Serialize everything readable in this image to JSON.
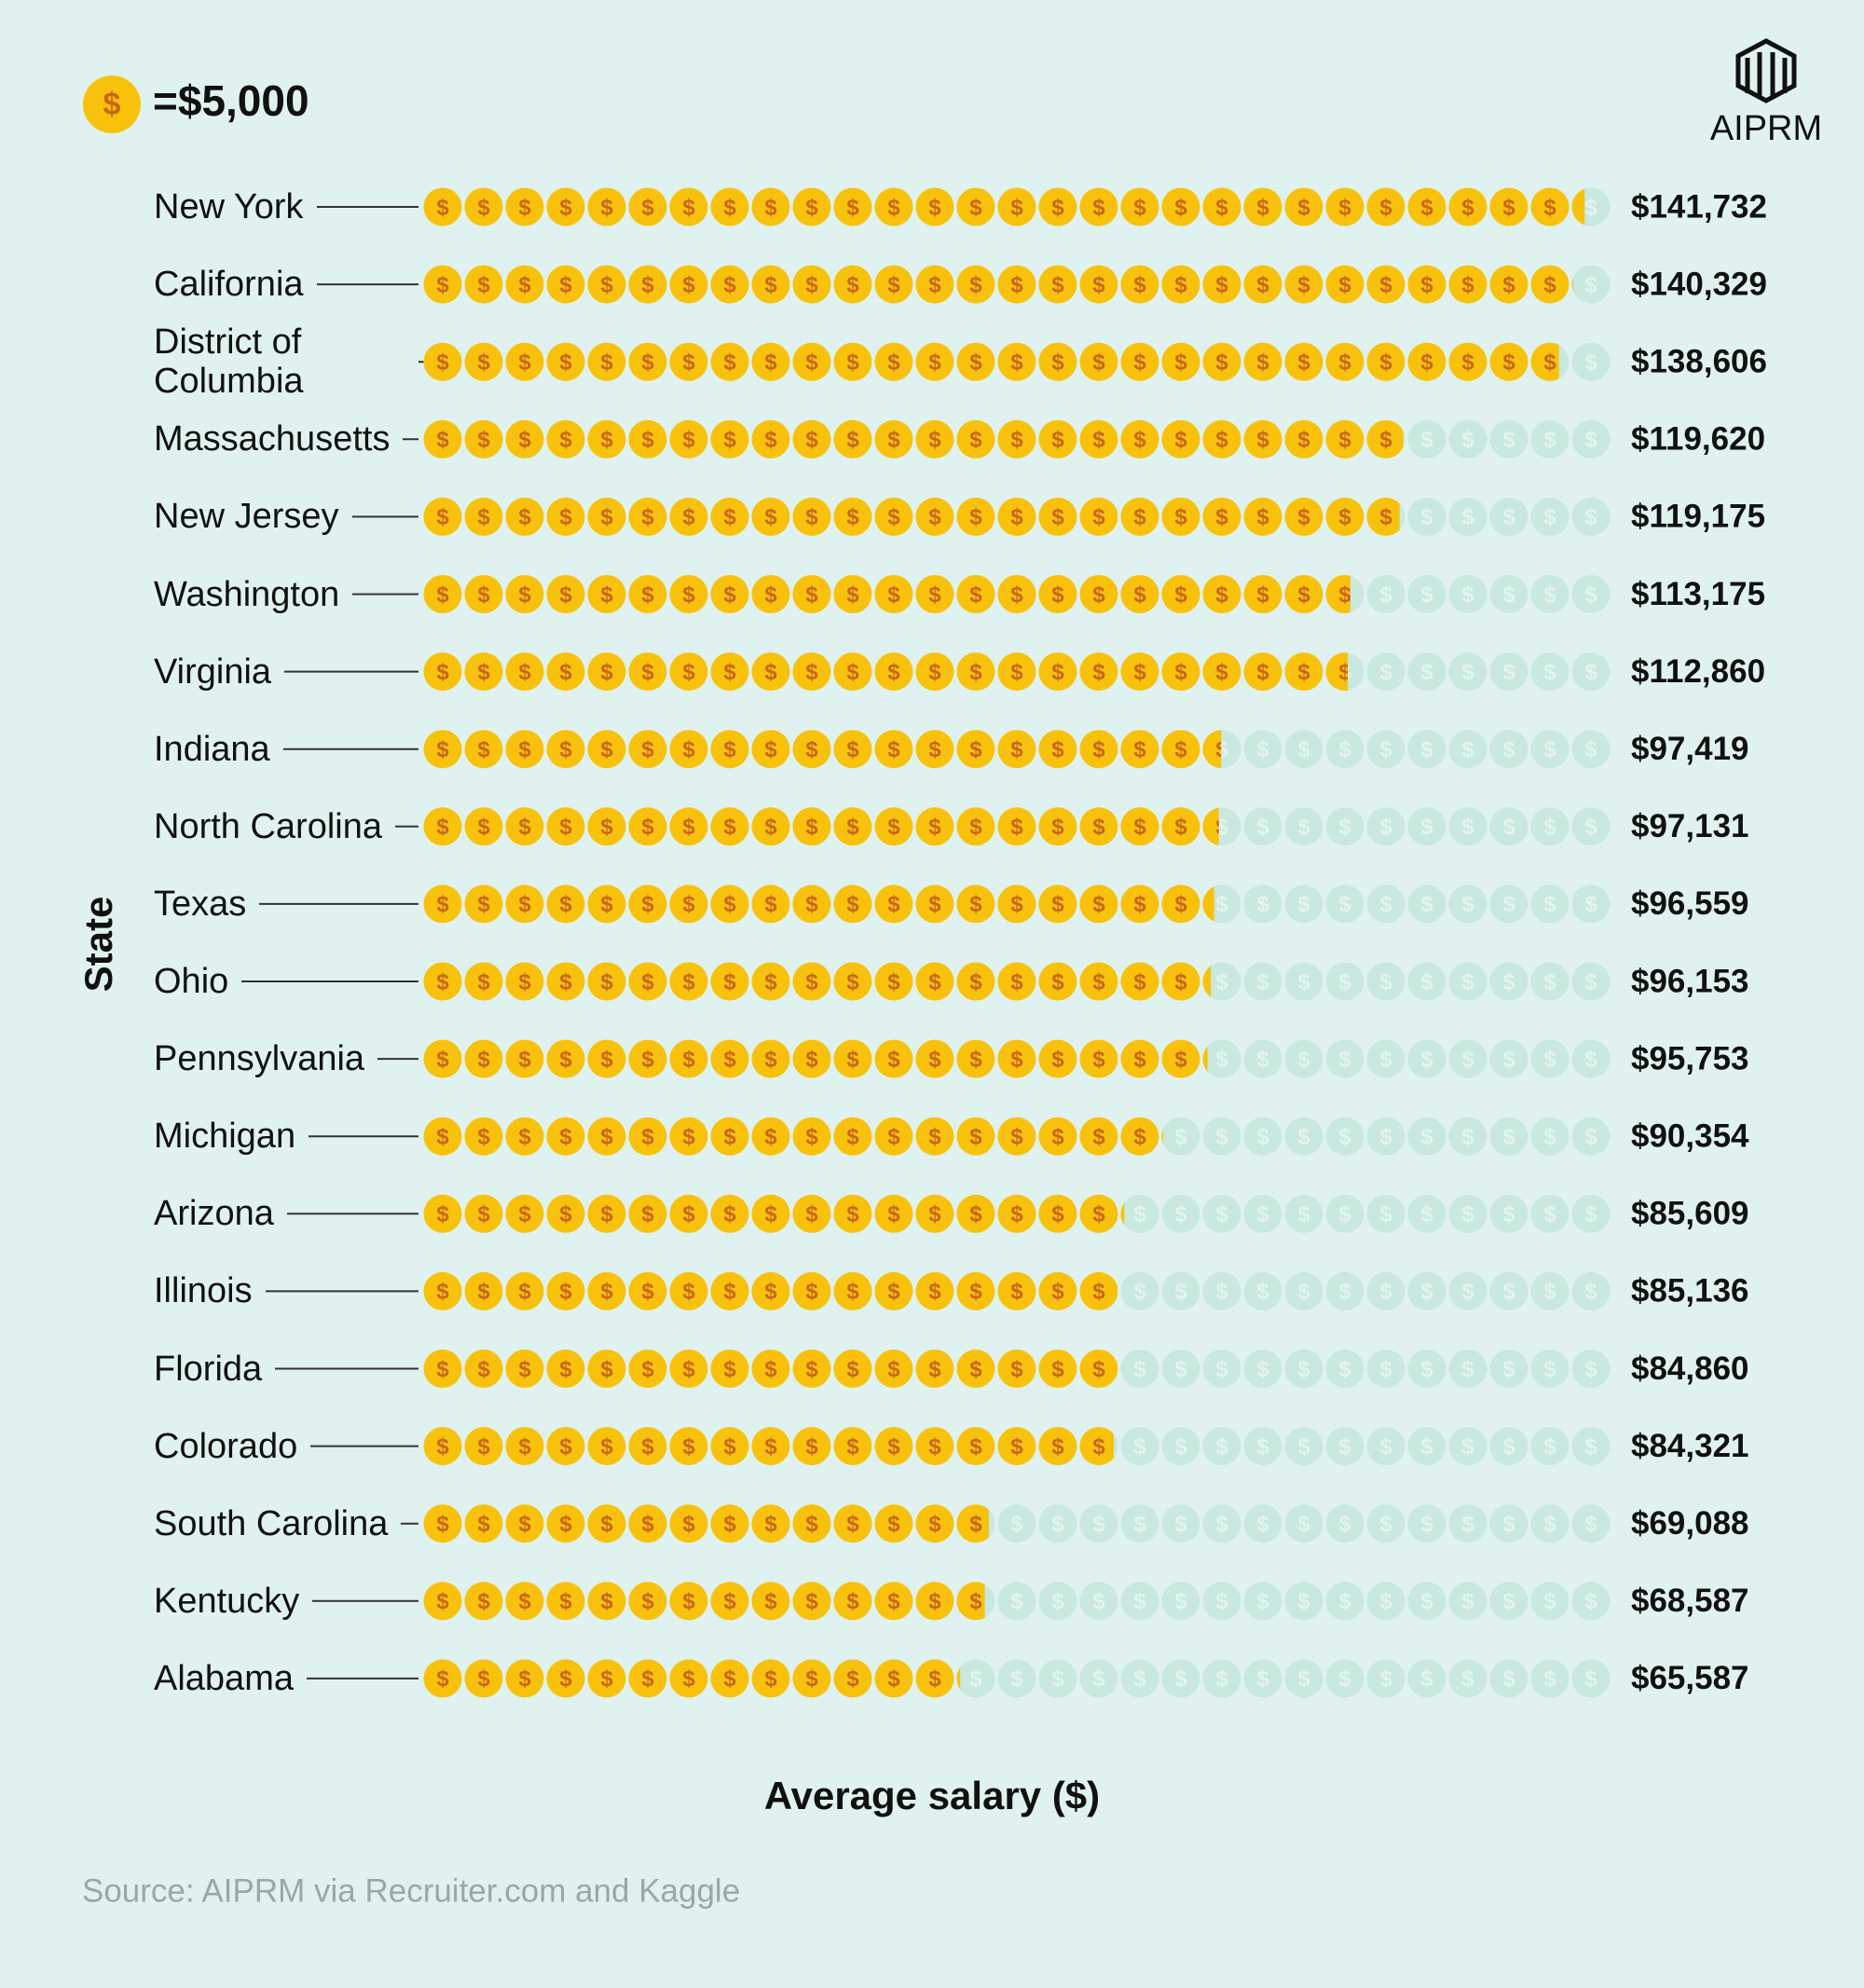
{
  "chart_data": {
    "type": "pictogram",
    "legend": {
      "value": 5000,
      "label": "=$5,000"
    },
    "symbol": "$",
    "logo": "AIPRM",
    "categories": [
      "New York",
      "California",
      "District of Columbia",
      "Massachusetts",
      "New Jersey",
      "Washington",
      "Virginia",
      "Indiana",
      "North Carolina",
      "Texas",
      "Ohio",
      "Pennsylvania",
      "Michigan",
      "Arizona",
      "Illinois",
      "Florida",
      "Colorado",
      "South Carolina",
      "Kentucky",
      "Alabama"
    ],
    "values": [
      141732,
      140329,
      138606,
      119620,
      119175,
      113175,
      112860,
      97419,
      97131,
      96559,
      96153,
      95753,
      90354,
      85609,
      85136,
      84860,
      84321,
      69088,
      68587,
      65587
    ],
    "value_labels": [
      "$141,732",
      "$140,329",
      "$138,606",
      "$119,620",
      "$119,175",
      "$113,175",
      "$112,860",
      "$97,419",
      "$97,131",
      "$96,559",
      "$96,153",
      "$95,753",
      "$90,354",
      "$85,609",
      "$85,136",
      "$84,860",
      "$84,321",
      "$69,088",
      "$68,587",
      "$65,587"
    ],
    "xlim": [
      0,
      145000
    ],
    "y_axis_label": "State",
    "x_axis_label": "Average salary ($)",
    "source": "Source: AIPRM via Recruiter.com and Kaggle",
    "color": "#f8c20c",
    "empty_color": "#c8e8e0"
  }
}
